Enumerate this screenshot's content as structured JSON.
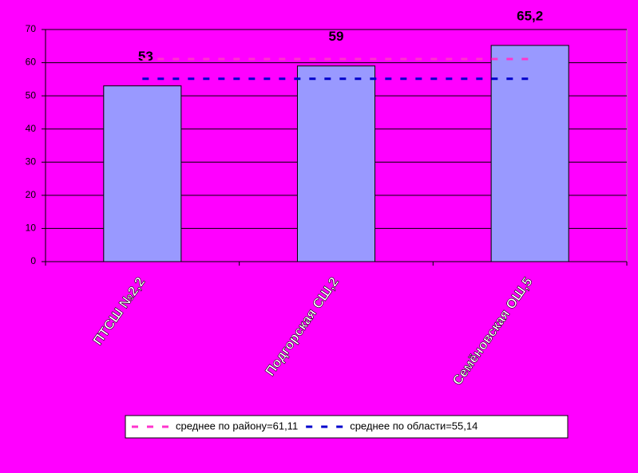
{
  "chart_data": {
    "type": "bar",
    "categories": [
      "ПТСШ №2,2",
      "Подгорская СШ,2",
      "Семёновская ОШ,5"
    ],
    "values": [
      53,
      59,
      65.2
    ],
    "value_labels": [
      "53",
      "59",
      "65,2"
    ],
    "color": "#9999ff",
    "ylim": [
      0,
      70
    ],
    "yticks": [
      0,
      10,
      20,
      30,
      40,
      50,
      60,
      70
    ],
    "grid": true,
    "reference_lines": [
      {
        "name": "среднее по району=61,11",
        "value": 61.11,
        "color": "#ff33cc"
      },
      {
        "name": "среднее по области=55,14",
        "value": 55.14,
        "color": "#0000cc"
      }
    ]
  }
}
